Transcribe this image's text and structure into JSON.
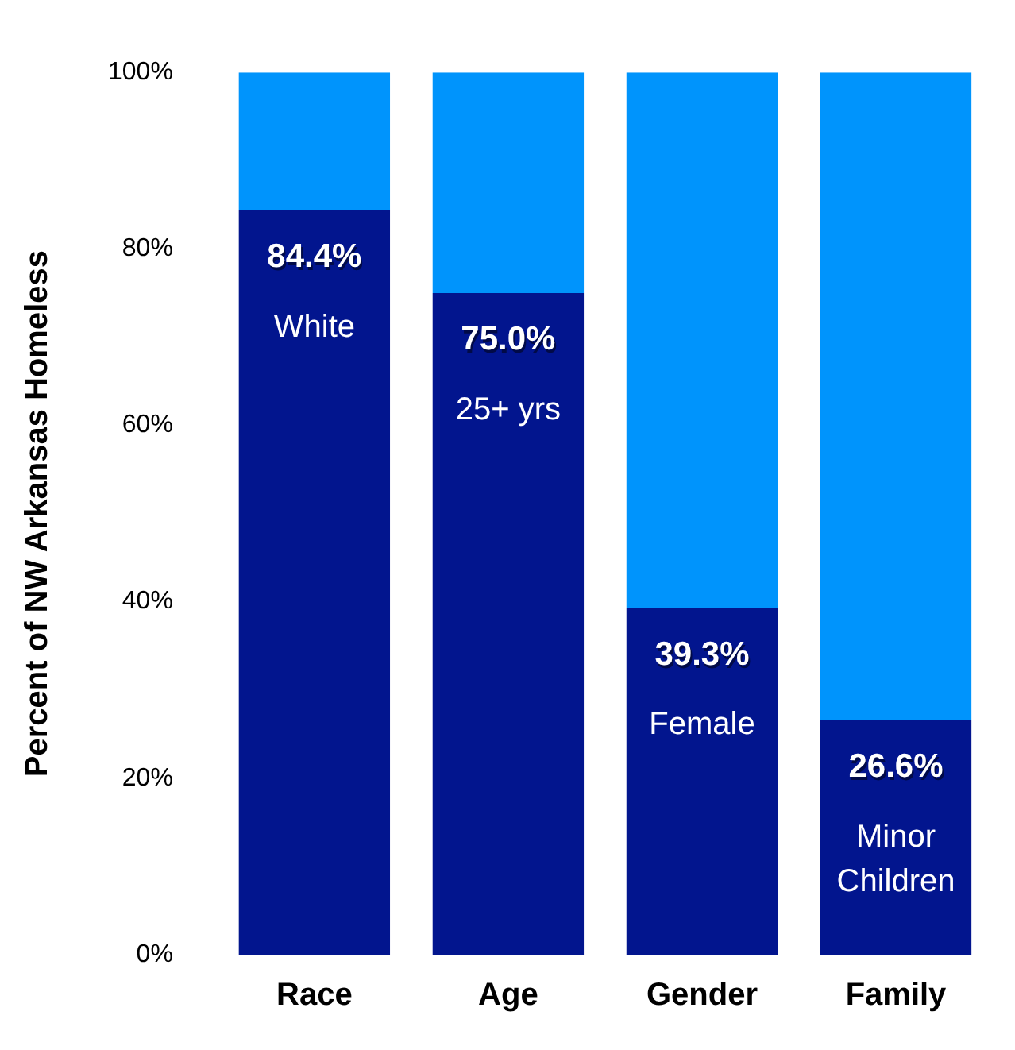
{
  "chart_data": {
    "type": "bar",
    "stacked": true,
    "ylabel": "Percent of NW Arkansas Homeless",
    "categories": [
      "Race",
      "Age",
      "Gender",
      "Family"
    ],
    "series": [
      {
        "color": "#02158e",
        "values": [
          84.4,
          75.0,
          39.3,
          26.6
        ],
        "value_labels": [
          "84.4%",
          "75.0%",
          "39.3%",
          "26.6%"
        ]
      },
      {
        "color": "#0094fc",
        "values": [
          15.6,
          25.0,
          60.7,
          73.4
        ]
      }
    ],
    "ylim": [
      0,
      100
    ],
    "yticks": [
      {
        "value": 0,
        "label": "0%"
      },
      {
        "value": 20,
        "label": "20%"
      },
      {
        "value": 40,
        "label": "40%"
      },
      {
        "value": 60,
        "label": "60%"
      },
      {
        "value": 80,
        "label": "80%"
      },
      {
        "value": 100,
        "label": "100%"
      }
    ],
    "annotations": [
      "White",
      "25+ yrs",
      "Female",
      "Minor Children"
    ],
    "grid": false,
    "legend": false
  }
}
